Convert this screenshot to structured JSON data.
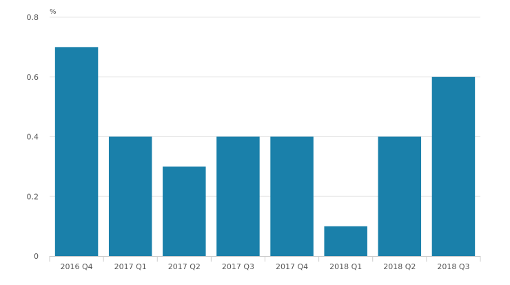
{
  "chart_data": {
    "type": "bar",
    "title": "",
    "xlabel": "",
    "ylabel": "%",
    "categories": [
      "2016 Q4",
      "2017 Q1",
      "2017 Q2",
      "2017 Q3",
      "2017 Q4",
      "2018 Q1",
      "2018 Q2",
      "2018 Q3"
    ],
    "values": [
      0.7,
      0.4,
      0.3,
      0.4,
      0.4,
      0.1,
      0.4,
      0.6
    ],
    "ylim": [
      0,
      0.8
    ],
    "yticks": [
      "0",
      "0.2",
      "0.4",
      "0.6",
      "0.8"
    ],
    "grid": true,
    "legend": "none",
    "bar_color": "#1a80aa",
    "grid_color": "#e6e6e6",
    "axis_color": "#cccccc"
  }
}
